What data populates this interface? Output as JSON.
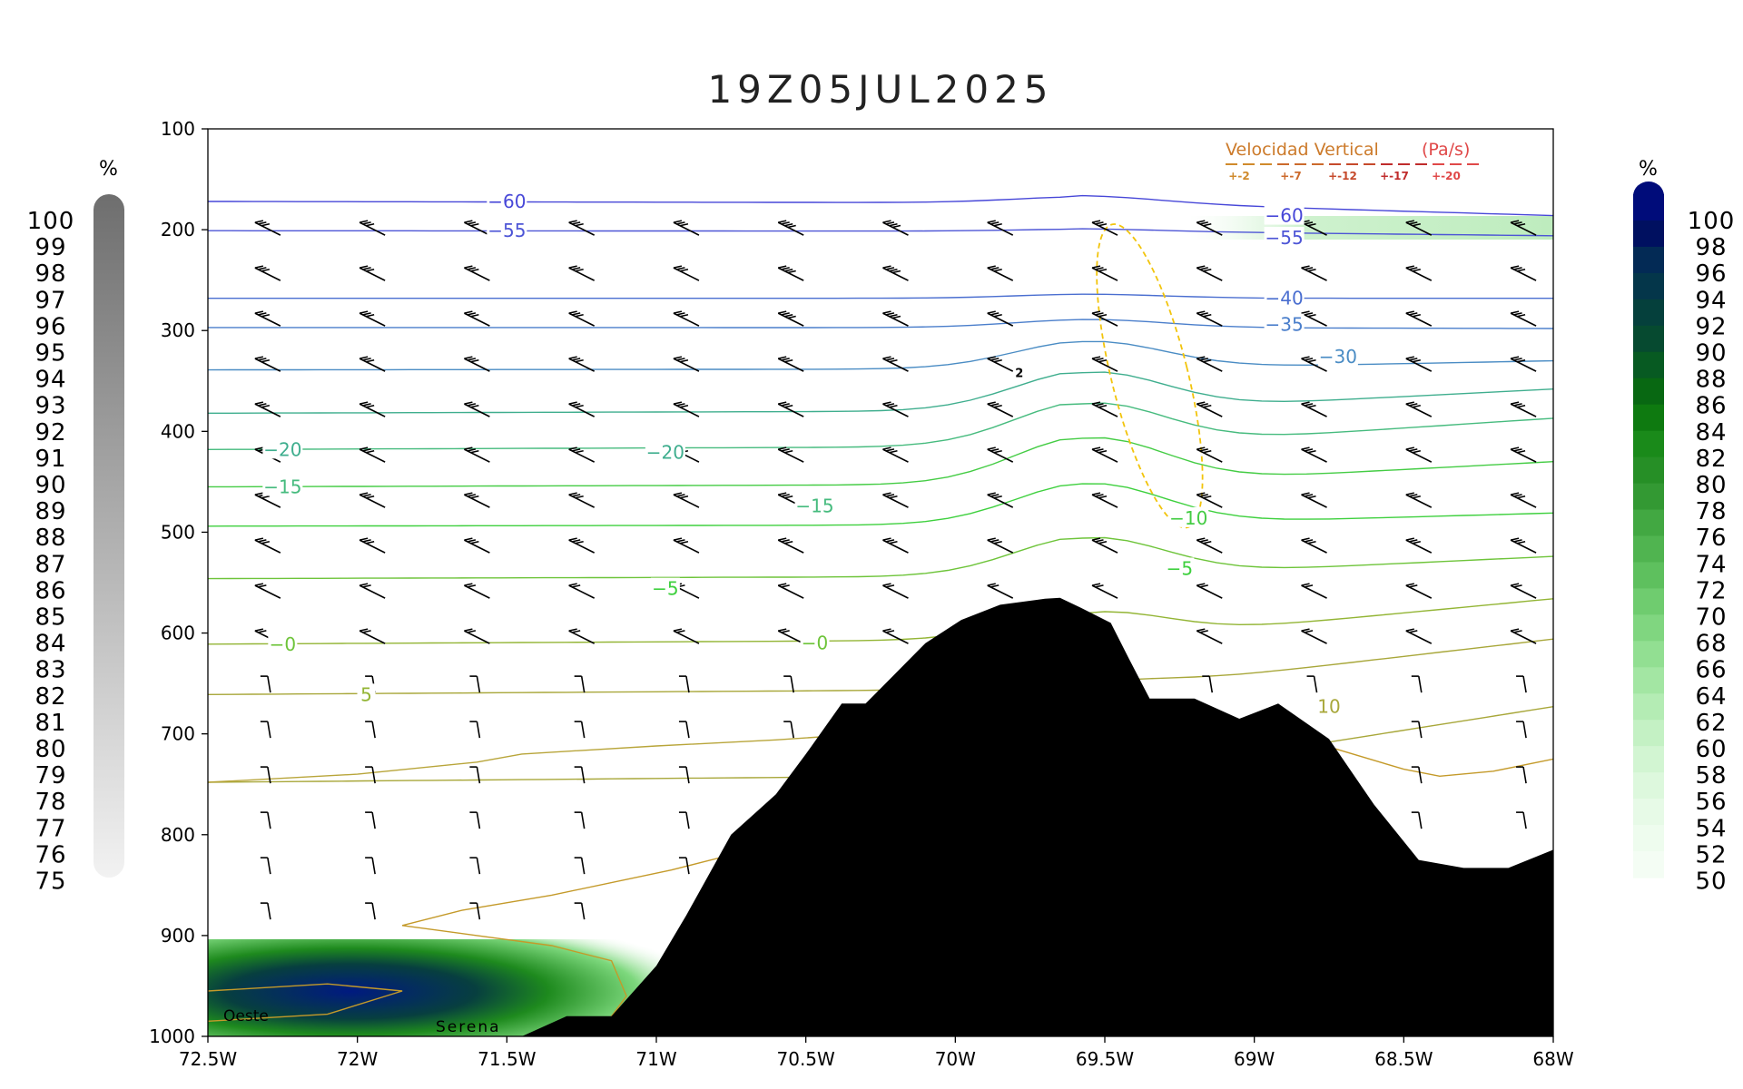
{
  "chart_data": {
    "type": "cross-section",
    "title": "19Z05JUL2025",
    "x_axis": {
      "ticks": [
        "72.5W",
        "72W",
        "71.5W",
        "71W",
        "70.5W",
        "70W",
        "69.5W",
        "69W",
        "68.5W",
        "68W"
      ],
      "range": [
        -72.5,
        -68.0
      ]
    },
    "y_axis": {
      "ticks": [
        "100",
        "200",
        "300",
        "400",
        "500",
        "600",
        "700",
        "800",
        "900",
        "1000"
      ],
      "range": [
        1000,
        100
      ],
      "scale": "linear, inverted"
    },
    "temperature_contours": [
      {
        "label": "-60",
        "color": "#4747d8"
      },
      {
        "label": "-55",
        "color": "#4d55d6"
      },
      {
        "label": "-40",
        "color": "#4a6ed0"
      },
      {
        "label": "-35",
        "color": "#4a7ecb"
      },
      {
        "label": "-30",
        "color": "#4a8cc4"
      },
      {
        "label": "-20",
        "color": "#3fae8e"
      },
      {
        "label": "-15",
        "color": "#46bb7e"
      },
      {
        "label": "-10",
        "color": "#44cc44"
      },
      {
        "label": "-5",
        "color": "#3ed03e"
      },
      {
        "label": "0",
        "color": "#6ec43a"
      },
      {
        "label": "5",
        "color": "#93b535"
      },
      {
        "label": "10",
        "color": "#a8a73a"
      }
    ],
    "contour_labels": [
      {
        "text": "−60",
        "lon": -71.5,
        "p": 172
      },
      {
        "text": "−55",
        "lon": -71.5,
        "p": 201
      },
      {
        "text": "−60",
        "lon": -68.9,
        "p": 186
      },
      {
        "text": "−55",
        "lon": -68.9,
        "p": 208
      },
      {
        "text": "−40",
        "lon": -68.9,
        "p": 268
      },
      {
        "text": "−35",
        "lon": -68.9,
        "p": 294
      },
      {
        "text": "−30",
        "lon": -68.72,
        "p": 326
      },
      {
        "text": "−20",
        "lon": -72.25,
        "p": 418
      },
      {
        "text": "−20",
        "lon": -70.97,
        "p": 421
      },
      {
        "text": "−15",
        "lon": -72.25,
        "p": 455
      },
      {
        "text": "−15",
        "lon": -70.47,
        "p": 474
      },
      {
        "text": "−10",
        "lon": -69.22,
        "p": 486
      },
      {
        "text": "−5",
        "lon": -70.97,
        "p": 556
      },
      {
        "text": "−5",
        "lon": -69.25,
        "p": 536
      },
      {
        "text": "−0",
        "lon": -72.25,
        "p": 611
      },
      {
        "text": "−0",
        "lon": -70.47,
        "p": 610
      },
      {
        "text": "5",
        "lon": -71.97,
        "p": 661
      },
      {
        "text": "10",
        "lon": -68.75,
        "p": 673
      }
    ],
    "wind_barbs": {
      "columns_lon": [
        -72.3,
        -71.95,
        -71.6,
        -71.25,
        -70.9,
        -70.55,
        -70.2,
        -69.85,
        -69.5,
        -69.15,
        -68.8,
        -68.45,
        -68.1
      ],
      "rows_p": [
        200,
        245,
        290,
        335,
        380,
        425,
        470,
        515,
        560,
        605,
        650,
        695,
        740,
        785,
        830,
        875
      ]
    },
    "isolated_label": {
      "text": "2",
      "lon": -69.8,
      "p": 346
    },
    "places": [
      "Oeste",
      "Serena"
    ],
    "topography_color": "#000000",
    "legend": {
      "title": "Velocidad Vertical",
      "units": "(Pa/s)",
      "entries": [
        {
          "label": "+-2",
          "color": "#d08a2c"
        },
        {
          "label": "+-7",
          "color": "#cc6a2c"
        },
        {
          "label": "+-12",
          "color": "#c64a2c"
        },
        {
          "label": "+-17",
          "color": "#c02c2c"
        },
        {
          "label": "+-20",
          "color": "#e04848"
        }
      ]
    },
    "left_colorbar": {
      "unit": "%",
      "labels": [
        "100",
        "99",
        "98",
        "97",
        "96",
        "95",
        "94",
        "93",
        "92",
        "91",
        "90",
        "89",
        "88",
        "87",
        "86",
        "85",
        "84",
        "83",
        "82",
        "81",
        "80",
        "79",
        "78",
        "77",
        "76",
        "75"
      ],
      "color_top": "#6e6e6e",
      "color_bottom": "#f2f2f2"
    },
    "right_colorbar": {
      "unit": "%",
      "labels": [
        "100",
        "98",
        "96",
        "94",
        "92",
        "90",
        "88",
        "86",
        "84",
        "82",
        "80",
        "78",
        "76",
        "74",
        "72",
        "70",
        "68",
        "66",
        "64",
        "62",
        "60",
        "58",
        "56",
        "54",
        "52",
        "50"
      ],
      "colors": [
        "#000c7a",
        "#001060",
        "#032a55",
        "#04364a",
        "#05403c",
        "#064a30",
        "#075a22",
        "#086812",
        "#0e7a10",
        "#1a8a1a",
        "#268f26",
        "#339933",
        "#42a842",
        "#50b450",
        "#5ec05e",
        "#6fcc6f",
        "#80d680",
        "#92df92",
        "#a3e6a3",
        "#b4ecb4",
        "#c4f1c4",
        "#d2f5d2",
        "#ddf8dd",
        "#e7fae7",
        "#eefcee",
        "#f4fdf4"
      ]
    }
  }
}
